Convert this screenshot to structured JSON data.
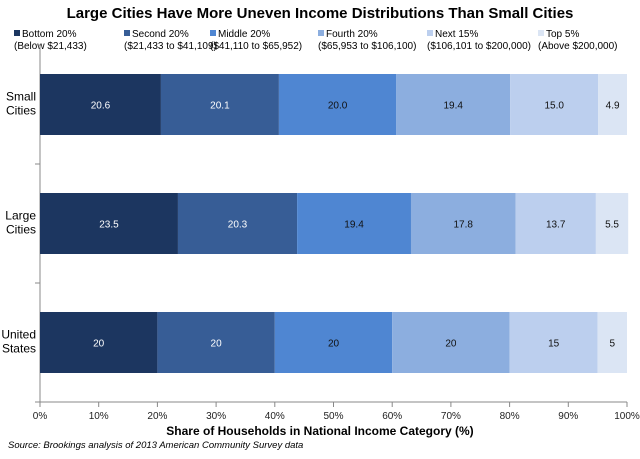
{
  "chart_data": {
    "type": "bar",
    "orientation": "horizontal",
    "stacked": true,
    "title": "Large Cities Have More Uneven Income Distributions Than Small Cities",
    "xlabel": "Share of Households in National Income Category (%)",
    "source": "Source: Brookings analysis of 2013 American Community Survey data",
    "categories": [
      "Small Cities",
      "Large Cities",
      "United States"
    ],
    "xlim": [
      0,
      100
    ],
    "xticks": [
      "0%",
      "10%",
      "20%",
      "30%",
      "40%",
      "50%",
      "60%",
      "70%",
      "80%",
      "90%",
      "100%"
    ],
    "legend_position": "top",
    "grid": false,
    "series": [
      {
        "name": "Bottom 20%",
        "range": "(Below $21,433)",
        "color": "#1c3660",
        "values": [
          20.6,
          23.5,
          20
        ],
        "labels": [
          "20.6",
          "23.5",
          "20"
        ]
      },
      {
        "name": "Second 20%",
        "range": "($21,433 to $41,109)",
        "color": "#375d96",
        "values": [
          20.1,
          20.3,
          20
        ],
        "labels": [
          "20.1",
          "20.3",
          "20"
        ]
      },
      {
        "name": "Middle 20%",
        "range": "($41,110 to $65,952)",
        "color": "#4f86d2",
        "values": [
          20.0,
          19.4,
          20
        ],
        "labels": [
          "20.0",
          "19.4",
          "20"
        ]
      },
      {
        "name": "Fourth 20%",
        "range": "($65,953 to $106,100)",
        "color": "#8caedf",
        "values": [
          19.4,
          17.8,
          20
        ],
        "labels": [
          "19.4",
          "17.8",
          "20"
        ]
      },
      {
        "name": "Next 15%",
        "range": "($106,101 to $200,000)",
        "color": "#bccfee",
        "values": [
          15.0,
          13.7,
          15
        ],
        "labels": [
          "15.0",
          "13.7",
          "15"
        ]
      },
      {
        "name": "Top 5%",
        "range": "(Above $200,000)",
        "color": "#dbe5f4",
        "values": [
          4.9,
          5.5,
          5
        ],
        "labels": [
          "4.9",
          "5.5",
          "5"
        ]
      }
    ]
  }
}
